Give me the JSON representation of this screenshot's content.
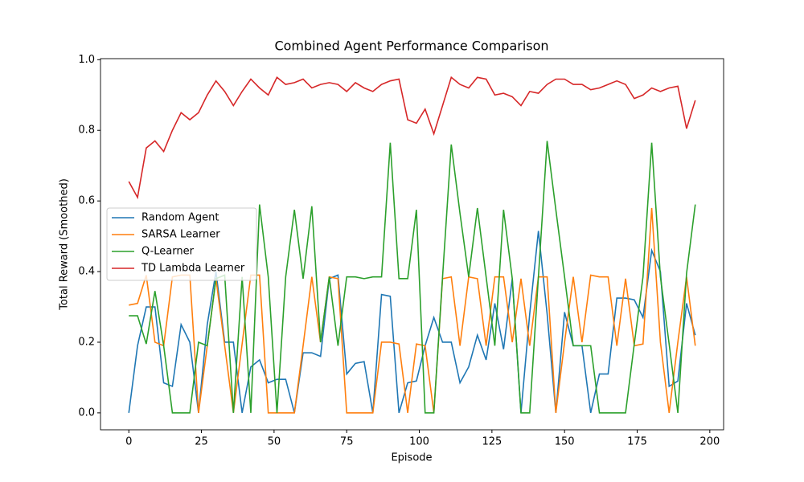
{
  "chart_data": {
    "type": "line",
    "title": "Combined Agent Performance Comparison",
    "x_label": "Episode",
    "y_label": "Total Reward (Smoothed)",
    "x": [
      0,
      3,
      6,
      9,
      12,
      15,
      18,
      21,
      24,
      27,
      30,
      33,
      36,
      39,
      42,
      45,
      48,
      51,
      54,
      57,
      60,
      63,
      66,
      69,
      72,
      75,
      78,
      81,
      84,
      87,
      90,
      93,
      96,
      99,
      102,
      105,
      108,
      111,
      114,
      117,
      120,
      123,
      126,
      129,
      132,
      135,
      138,
      141,
      144,
      147,
      150,
      153,
      156,
      159,
      162,
      165,
      168,
      171,
      174,
      177,
      180,
      183,
      186,
      189,
      192,
      195
    ],
    "series": [
      {
        "name": "Random Agent",
        "color": "#1f77b4",
        "values": [
          0,
          0.19,
          0.3,
          0.3,
          0.085,
          0.075,
          0.25,
          0.2,
          0,
          0.25,
          0.4,
          0.2,
          0.2,
          0,
          0.13,
          0.15,
          0.085,
          0.095,
          0.095,
          0,
          0.17,
          0.17,
          0.16,
          0.38,
          0.39,
          0.11,
          0.14,
          0.145,
          0,
          0.335,
          0.33,
          0,
          0.085,
          0.09,
          0.19,
          0.27,
          0.2,
          0.2,
          0.085,
          0.13,
          0.22,
          0.15,
          0.31,
          0.18,
          0.38,
          0,
          0.28,
          0.515,
          0.28,
          0,
          0.285,
          0.19,
          0.19,
          0,
          0.11,
          0.11,
          0.325,
          0.325,
          0.32,
          0.27,
          0.46,
          0.4,
          0.075,
          0.09,
          0.31,
          0.22
        ]
      },
      {
        "name": "SARSA Learner",
        "color": "#ff7f0e",
        "values": [
          0.305,
          0.31,
          0.39,
          0.2,
          0.19,
          0.385,
          0.39,
          0.39,
          0,
          0.19,
          0.38,
          0.19,
          0,
          0.195,
          0.39,
          0.39,
          0,
          0,
          0,
          0,
          0.19,
          0.385,
          0.2,
          0.385,
          0.38,
          0,
          0,
          0,
          0,
          0.2,
          0.2,
          0.195,
          0,
          0.195,
          0.19,
          0,
          0.38,
          0.385,
          0.19,
          0.385,
          0.38,
          0.19,
          0.385,
          0.385,
          0.2,
          0.38,
          0.19,
          0.385,
          0.385,
          0,
          0.2,
          0.385,
          0.2,
          0.39,
          0.385,
          0.385,
          0.19,
          0.38,
          0.19,
          0.195,
          0.58,
          0.2,
          0,
          0.2,
          0.385,
          0.19
        ]
      },
      {
        "name": "Q-Learner",
        "color": "#2ca02c",
        "values": [
          0.275,
          0.275,
          0.195,
          0.345,
          0.19,
          0,
          0,
          0,
          0.2,
          0.19,
          0.38,
          0.39,
          0,
          0.385,
          0,
          0.59,
          0.385,
          0,
          0.385,
          0.575,
          0.38,
          0.585,
          0.2,
          0.385,
          0.19,
          0.385,
          0.385,
          0.38,
          0.385,
          0.385,
          0.765,
          0.38,
          0.38,
          0.575,
          0,
          0,
          0.385,
          0.76,
          0.565,
          0.385,
          0.58,
          0.385,
          0.19,
          0.575,
          0.38,
          0,
          0,
          0.385,
          0.77,
          0.575,
          0.385,
          0.19,
          0.19,
          0.19,
          0,
          0,
          0,
          0,
          0.195,
          0.385,
          0.765,
          0.385,
          0.195,
          0,
          0.395,
          0.59
        ]
      },
      {
        "name": "TD Lambda Learner",
        "color": "#d62728",
        "values": [
          0.655,
          0.61,
          0.75,
          0.77,
          0.74,
          0.8,
          0.85,
          0.83,
          0.85,
          0.9,
          0.94,
          0.91,
          0.87,
          0.91,
          0.945,
          0.92,
          0.9,
          0.95,
          0.93,
          0.935,
          0.945,
          0.92,
          0.93,
          0.935,
          0.93,
          0.91,
          0.935,
          0.92,
          0.91,
          0.93,
          0.94,
          0.945,
          0.83,
          0.82,
          0.86,
          0.79,
          0.87,
          0.95,
          0.93,
          0.92,
          0.95,
          0.945,
          0.9,
          0.905,
          0.895,
          0.87,
          0.91,
          0.905,
          0.93,
          0.945,
          0.945,
          0.93,
          0.93,
          0.915,
          0.92,
          0.93,
          0.94,
          0.93,
          0.89,
          0.9,
          0.92,
          0.91,
          0.92,
          0.925,
          0.805,
          0.885
        ]
      }
    ],
    "xlim": [
      -9.75,
      204.75
    ],
    "ylim": [
      -0.048,
      1.003
    ],
    "xticks": [
      0,
      25,
      50,
      75,
      100,
      125,
      150,
      175,
      200
    ],
    "yticks": [
      {
        "value": 0,
        "label": "0.0"
      },
      {
        "value": 0.2,
        "label": "0.2"
      },
      {
        "value": 0.4,
        "label": "0.4"
      },
      {
        "value": 0.6,
        "label": "0.6"
      },
      {
        "value": 0.8,
        "label": "0.8"
      },
      {
        "value": 1,
        "label": "1.0"
      }
    ],
    "legend": "center left",
    "grid": false
  }
}
